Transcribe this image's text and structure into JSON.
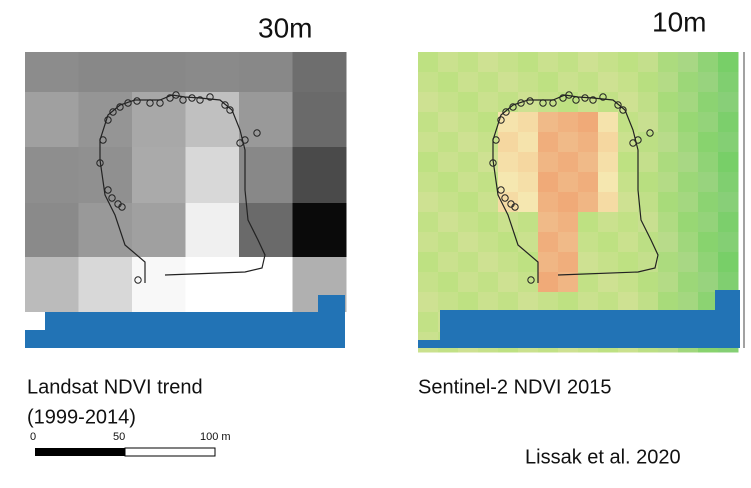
{
  "left_panel": {
    "resolution": "30m",
    "caption_line1": "Landsat NDVI trend",
    "caption_line2": "(1999-2014)"
  },
  "right_panel": {
    "resolution": "10m",
    "caption": "Sentinel-2 NDVI 2015"
  },
  "scale_bar": {
    "labels": [
      "0",
      "50",
      "100 m"
    ]
  },
  "credit": "Lissak et al. 2020"
}
